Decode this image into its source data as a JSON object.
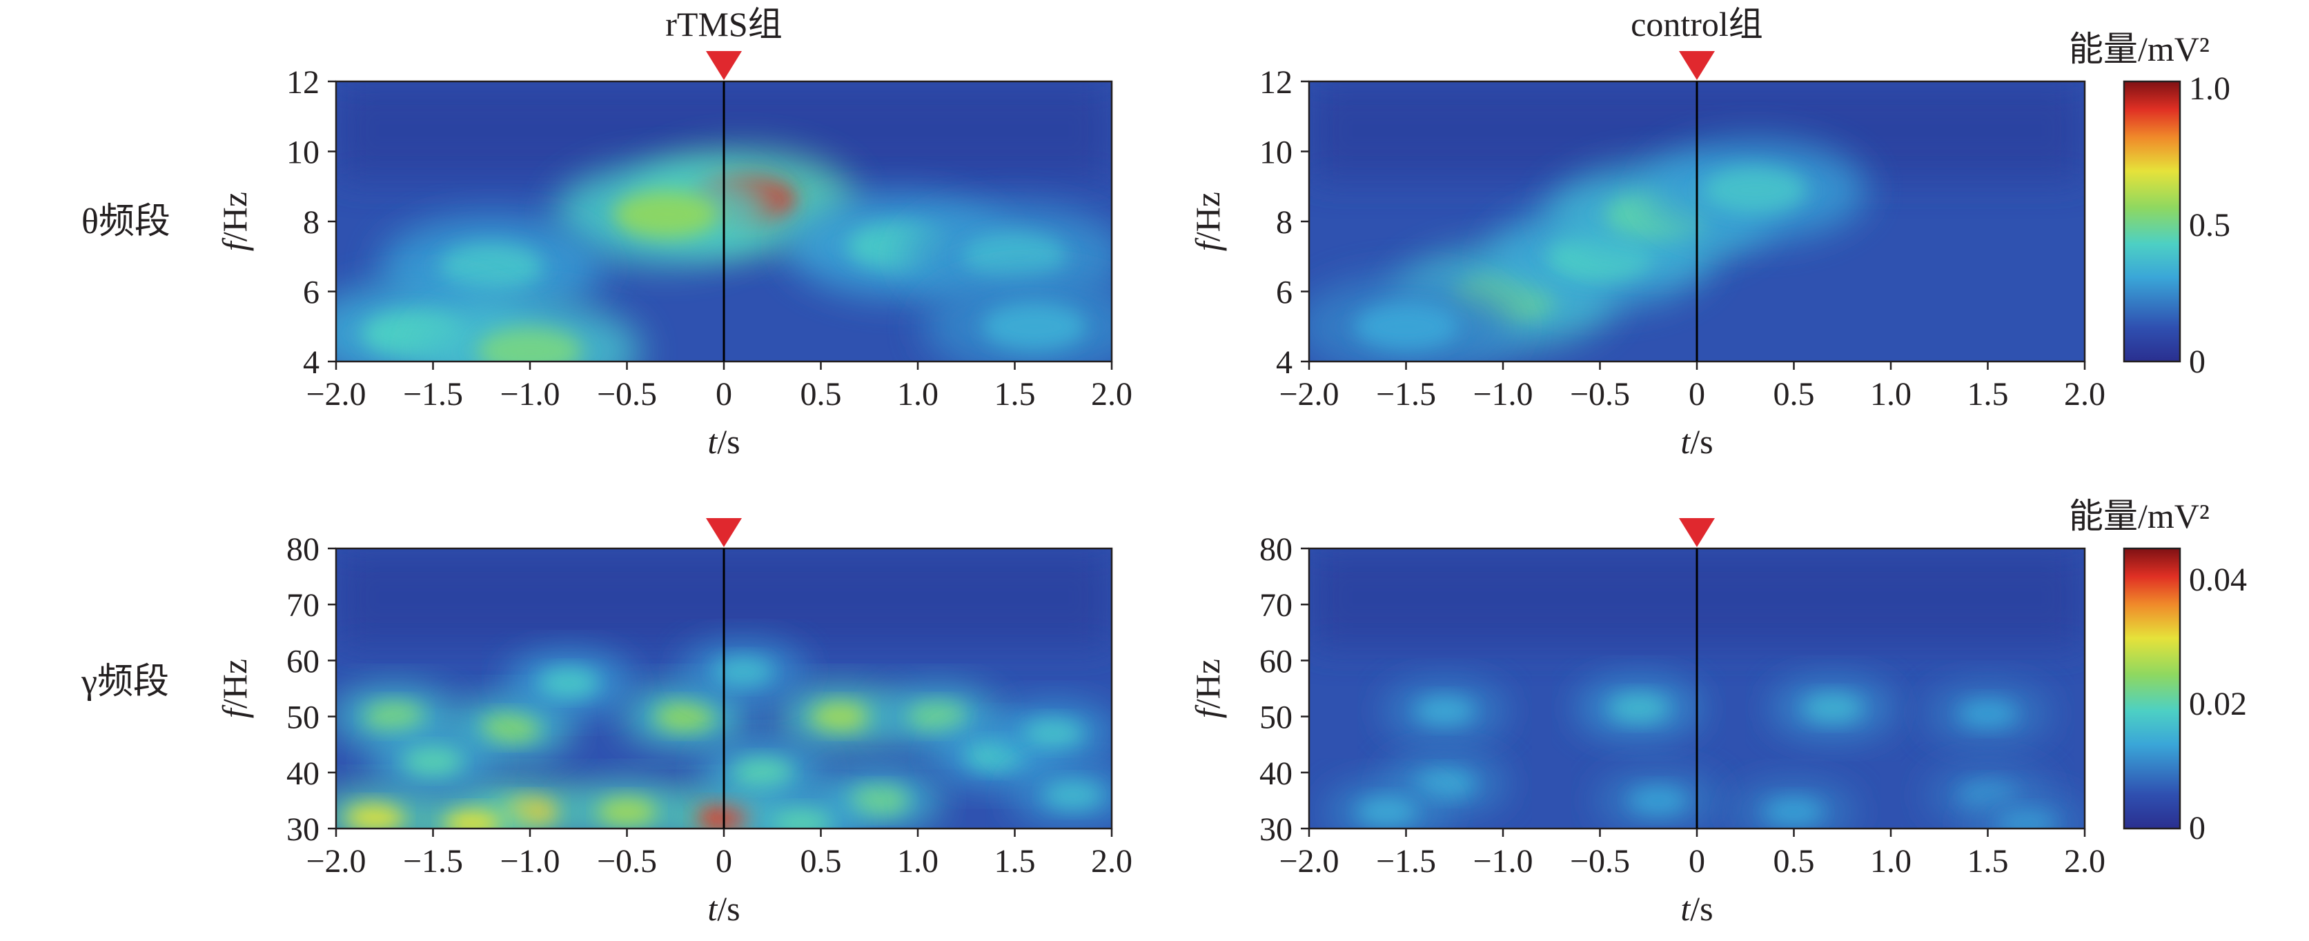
{
  "chart_data": [
    {
      "type": "heatmap",
      "title": "rTMS组",
      "row_label": "θ频段",
      "xlabel": "t/s",
      "ylabel": "f/Hz",
      "xlim": [
        -2.0,
        2.0
      ],
      "ylim": [
        4,
        12
      ],
      "xticks": [
        "−2.0",
        "−1.5",
        "−1.0",
        "−0.5",
        "0",
        "0.5",
        "1.0",
        "1.5",
        "2.0"
      ],
      "yticks": [
        "4",
        "6",
        "8",
        "10",
        "12"
      ],
      "stimulus_marker_t": 0,
      "colorbar": null,
      "hotspots": [
        {
          "t": 0.1,
          "f": 8.6,
          "value": 0.9
        },
        {
          "t": -0.3,
          "f": 8.2,
          "value": 0.55
        },
        {
          "t": 0.9,
          "f": 7.3,
          "value": 0.4
        },
        {
          "t": 1.5,
          "f": 7.0,
          "value": 0.35
        },
        {
          "t": -1.2,
          "f": 6.7,
          "value": 0.38
        },
        {
          "t": -1.6,
          "f": 4.8,
          "value": 0.42
        },
        {
          "t": -1.0,
          "f": 4.3,
          "value": 0.5
        },
        {
          "t": 1.6,
          "f": 5.0,
          "value": 0.32
        }
      ]
    },
    {
      "type": "heatmap",
      "title": "control组",
      "row_label": "",
      "xlabel": "t/s",
      "ylabel": "f/Hz",
      "xlim": [
        -2.0,
        2.0
      ],
      "ylim": [
        4,
        12
      ],
      "xticks": [
        "−2.0",
        "−1.5",
        "−1.0",
        "−0.5",
        "0",
        "0.5",
        "1.0",
        "1.5",
        "2.0"
      ],
      "yticks": [
        "4",
        "6",
        "8",
        "10",
        "12"
      ],
      "stimulus_marker_t": 0,
      "colorbar": {
        "label": "能量/mV²",
        "ticks": [
          "0",
          "0.5",
          "1.0"
        ],
        "range": [
          0,
          1.0
        ]
      },
      "hotspots": [
        {
          "t": -1.0,
          "f": 5.8,
          "value": 0.48
        },
        {
          "t": -0.5,
          "f": 7.0,
          "value": 0.42
        },
        {
          "t": -0.2,
          "f": 8.2,
          "value": 0.45
        },
        {
          "t": 0.3,
          "f": 8.9,
          "value": 0.38
        },
        {
          "t": -1.5,
          "f": 5.0,
          "value": 0.3
        }
      ]
    },
    {
      "type": "heatmap",
      "title": "",
      "row_label": "γ频段",
      "xlabel": "t/s",
      "ylabel": "f/Hz",
      "xlim": [
        -2.0,
        2.0
      ],
      "ylim": [
        30,
        80
      ],
      "xticks": [
        "−2.0",
        "−1.5",
        "−1.0",
        "−0.5",
        "0",
        "0.5",
        "1.0",
        "1.5",
        "2.0"
      ],
      "yticks": [
        "30",
        "40",
        "50",
        "60",
        "70",
        "80"
      ],
      "stimulus_marker_t": 0,
      "colorbar": null,
      "hotspots": [
        {
          "t": 0.0,
          "f": 32,
          "value": 0.04
        },
        {
          "t": -1.0,
          "f": 33,
          "value": 0.032
        },
        {
          "t": -1.3,
          "f": 31,
          "value": 0.03
        },
        {
          "t": -1.8,
          "f": 32,
          "value": 0.03
        },
        {
          "t": -0.5,
          "f": 33,
          "value": 0.026
        },
        {
          "t": -1.1,
          "f": 48,
          "value": 0.024
        },
        {
          "t": -1.7,
          "f": 50,
          "value": 0.023
        },
        {
          "t": -0.2,
          "f": 50,
          "value": 0.025
        },
        {
          "t": 0.6,
          "f": 50,
          "value": 0.026
        },
        {
          "t": 1.1,
          "f": 50,
          "value": 0.022
        },
        {
          "t": 0.2,
          "f": 40,
          "value": 0.02
        },
        {
          "t": 0.8,
          "f": 35,
          "value": 0.022
        },
        {
          "t": 1.4,
          "f": 43,
          "value": 0.018
        },
        {
          "t": -0.8,
          "f": 56,
          "value": 0.018
        },
        {
          "t": 0.1,
          "f": 58,
          "value": 0.016
        },
        {
          "t": 1.7,
          "f": 47,
          "value": 0.017
        },
        {
          "t": -1.5,
          "f": 42,
          "value": 0.02
        },
        {
          "t": 0.4,
          "f": 31,
          "value": 0.02
        },
        {
          "t": 1.8,
          "f": 36,
          "value": 0.016
        }
      ]
    },
    {
      "type": "heatmap",
      "title": "",
      "row_label": "",
      "xlabel": "t/s",
      "ylabel": "f/Hz",
      "xlim": [
        -2.0,
        2.0
      ],
      "ylim": [
        30,
        80
      ],
      "xticks": [
        "−2.0",
        "−1.5",
        "−1.0",
        "−0.5",
        "0",
        "0.5",
        "1.0",
        "1.5",
        "2.0"
      ],
      "yticks": [
        "30",
        "40",
        "50",
        "60",
        "70",
        "80"
      ],
      "stimulus_marker_t": 0,
      "colorbar": {
        "label": "能量/mV²",
        "ticks": [
          "0",
          "0.02",
          "0.04"
        ],
        "range": [
          0,
          0.045
        ]
      },
      "hotspots": [
        {
          "t": -0.3,
          "f": 51.5,
          "value": 0.016
        },
        {
          "t": 0.7,
          "f": 51.5,
          "value": 0.015
        },
        {
          "t": -1.3,
          "f": 51,
          "value": 0.014
        },
        {
          "t": 1.5,
          "f": 50.5,
          "value": 0.013
        },
        {
          "t": -1.3,
          "f": 38,
          "value": 0.014
        },
        {
          "t": -0.2,
          "f": 35,
          "value": 0.013
        },
        {
          "t": 0.5,
          "f": 33,
          "value": 0.013
        },
        {
          "t": -1.6,
          "f": 33,
          "value": 0.014
        },
        {
          "t": 1.5,
          "f": 36,
          "value": 0.012
        },
        {
          "t": 1.7,
          "f": 31,
          "value": 0.012
        }
      ]
    }
  ],
  "colors": {
    "marker": "#e0282e",
    "low": "#2b3c97",
    "high": "#7f1114"
  }
}
